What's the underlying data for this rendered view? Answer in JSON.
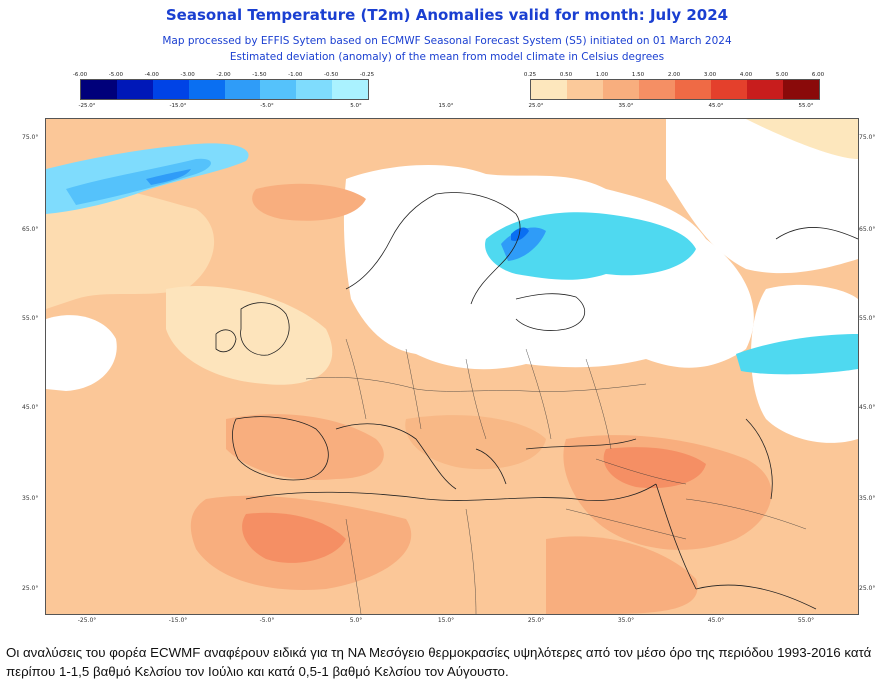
{
  "title": "Seasonal Temperature (T2m) Anomalies valid for month: July 2024",
  "subtitle1": "Map processed by EFFIS Sytem based on ECMWF Seasonal Forecast System (S5) initiated on 01 March 2024",
  "subtitle2": "Estimated deviation (anomaly) of the mean from model climate in Celsius degrees",
  "legend_cold": {
    "labels": [
      "-6.00",
      "-5.00",
      "-4.00",
      "-3.00",
      "-2.00",
      "-1.50",
      "-1.00",
      "-0.50",
      "-0.25"
    ],
    "colors": [
      "#00007a",
      "#0018b8",
      "#0043e6",
      "#0a6ff2",
      "#2f9cf8",
      "#55c2fb",
      "#7fdcfd",
      "#aaf2ff"
    ]
  },
  "legend_warm": {
    "labels": [
      "0.25",
      "0.50",
      "1.00",
      "1.50",
      "2.00",
      "3.00",
      "4.00",
      "5.00",
      "6.00"
    ],
    "colors": [
      "#fde7bd",
      "#fbc99a",
      "#f8ae7e",
      "#f58f64",
      "#ef6a45",
      "#e4402c",
      "#c81d1d",
      "#8a0a0a"
    ]
  },
  "lon_ticks": [
    "-25.0°",
    "-15.0°",
    "-5.0°",
    "5.0°",
    "15.0°",
    "25.0°",
    "35.0°",
    "45.0°",
    "55.0°"
  ],
  "lon_top_ticks": [
    "-25.0°",
    "-15.0°",
    "-5.0°",
    "5.0°",
    "15.0°",
    "25.0°",
    "35.0°",
    "45.0°",
    "55.0°"
  ],
  "lat_ticks": [
    "75.0°",
    "65.0°",
    "55.0°",
    "45.0°",
    "35.0°",
    "25.0°"
  ],
  "caption": "Οι αναλύσεις του φορέα ECWMF αναφέρουν ειδικά για τη ΝΑ Μεσόγειο θερμοκρασίες υψηλότερες από τον μέσο όρο της περιόδου 1993-2016 κατά περίπου 1-1,5 βαθμό Κελσίου τον Ιούλιο και κατά 0,5-1 βαθμό Κελσίου τον Αύγουστο."
}
